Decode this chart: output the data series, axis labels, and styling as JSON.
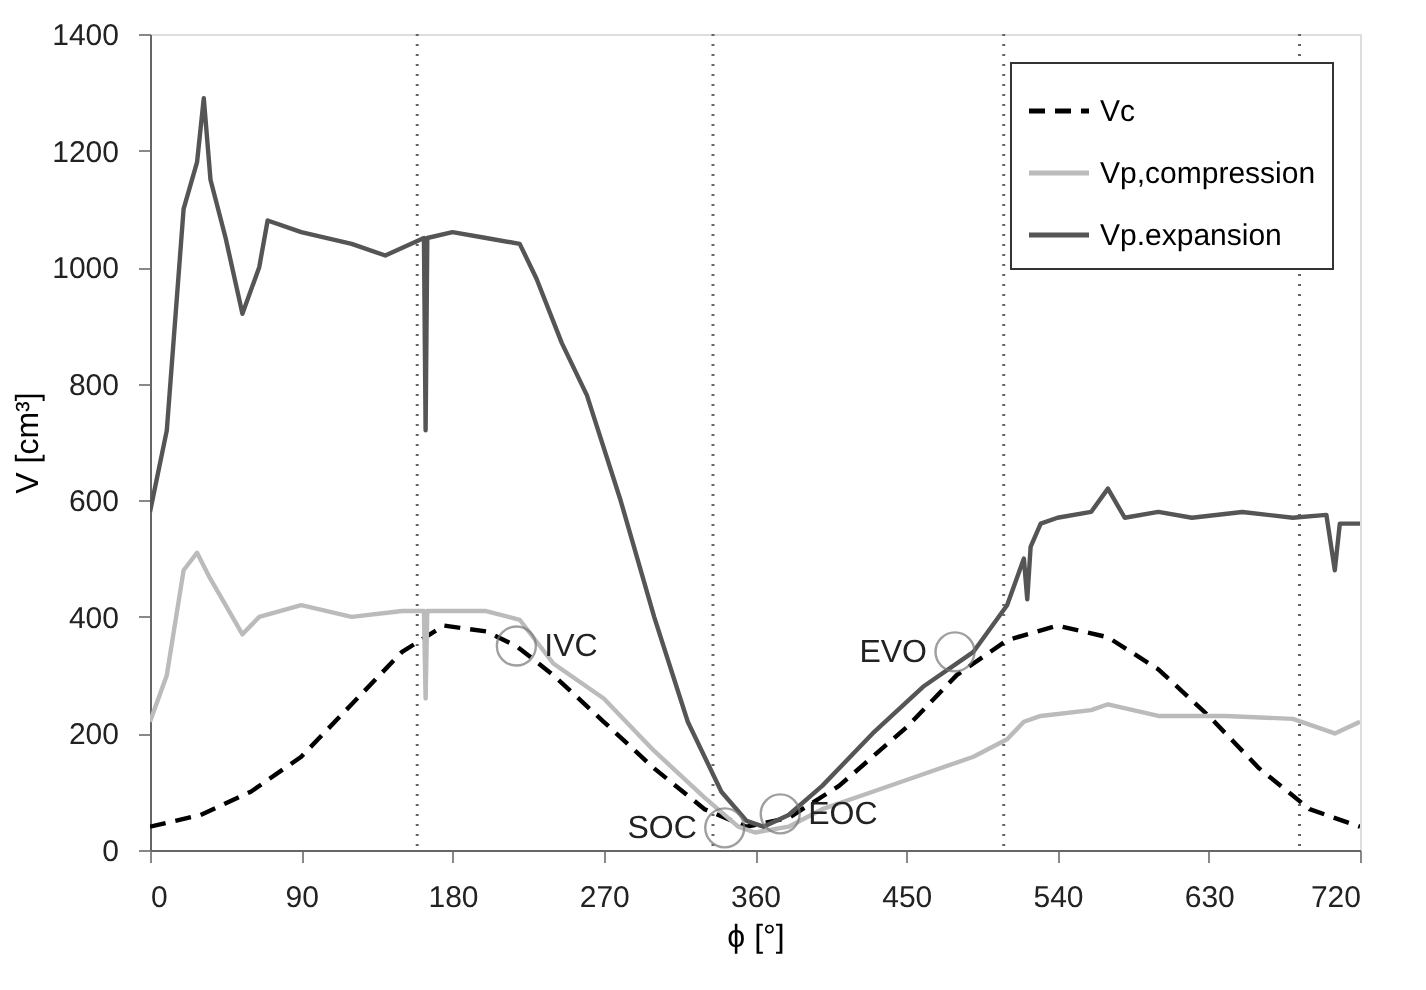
{
  "chart_data": {
    "type": "line",
    "xlabel": "ϕ [°]",
    "ylabel": "V [cm³]",
    "xlim": [
      0,
      720
    ],
    "xticks": [
      0,
      90,
      180,
      270,
      360,
      450,
      540,
      630,
      720
    ],
    "ylim": [
      0,
      1400
    ],
    "yticks": [
      0,
      200,
      400,
      600,
      800,
      1000,
      1200,
      1400
    ],
    "grid": false,
    "legend": "top right",
    "series": [
      {
        "name": "Vc",
        "color": "#000000",
        "line_style": "dashed",
        "x": [
          0,
          30,
          60,
          90,
          120,
          150,
          175,
          200,
          218,
          240,
          270,
          300,
          330,
          355,
          380,
          410,
          450,
          480,
          510,
          540,
          570,
          600,
          630,
          660,
          690,
          720
        ],
        "values": [
          40,
          60,
          100,
          160,
          250,
          340,
          385,
          375,
          350,
          300,
          220,
          140,
          70,
          40,
          55,
          110,
          210,
          300,
          360,
          385,
          365,
          310,
          230,
          140,
          70,
          40
        ]
      },
      {
        "name": "Vp,compression",
        "color": "#bbbbbb",
        "line_style": "solid",
        "x": [
          0,
          10,
          20,
          28,
          35,
          45,
          55,
          65,
          90,
          120,
          150,
          163,
          164,
          165,
          200,
          220,
          240,
          270,
          300,
          330,
          350,
          360,
          380,
          400,
          430,
          460,
          490,
          510,
          520,
          530,
          560,
          570,
          600,
          640,
          680,
          705,
          720
        ],
        "values": [
          220,
          300,
          480,
          510,
          470,
          420,
          370,
          400,
          420,
          400,
          410,
          410,
          260,
          410,
          410,
          395,
          320,
          260,
          170,
          90,
          40,
          30,
          40,
          70,
          100,
          130,
          160,
          190,
          220,
          230,
          240,
          250,
          230,
          230,
          225,
          200,
          220
        ]
      },
      {
        "name": "Vp.expansion",
        "color": "#555555",
        "line_style": "solid",
        "x": [
          0,
          10,
          20,
          28,
          32,
          36,
          45,
          55,
          65,
          70,
          90,
          120,
          140,
          163,
          164,
          165,
          180,
          200,
          220,
          230,
          245,
          260,
          280,
          300,
          320,
          340,
          355,
          365,
          380,
          400,
          430,
          460,
          490,
          510,
          520,
          522,
          524,
          530,
          540,
          560,
          570,
          580,
          600,
          620,
          650,
          680,
          700,
          705,
          708,
          720
        ],
        "values": [
          580,
          720,
          1100,
          1180,
          1290,
          1150,
          1050,
          920,
          1000,
          1080,
          1060,
          1040,
          1020,
          1050,
          720,
          1050,
          1060,
          1050,
          1040,
          980,
          870,
          780,
          600,
          400,
          220,
          100,
          50,
          40,
          60,
          110,
          200,
          280,
          340,
          420,
          500,
          430,
          520,
          560,
          570,
          580,
          620,
          570,
          580,
          570,
          580,
          570,
          575,
          480,
          560,
          560
        ]
      }
    ],
    "ref_lines": [
      {
        "axis": "x",
        "value": 159,
        "color": "#666666",
        "line_style": "dotted"
      },
      {
        "axis": "x",
        "value": 335,
        "color": "#666666",
        "line_style": "dotted"
      },
      {
        "axis": "x",
        "value": 508,
        "color": "#666666",
        "line_style": "dotted"
      },
      {
        "axis": "x",
        "value": 684,
        "color": "#666666",
        "line_style": "dotted"
      }
    ],
    "annotations": [
      {
        "text": "IVC",
        "x": 218,
        "y": 350
      },
      {
        "text": "SOC",
        "x": 342,
        "y": 38
      },
      {
        "text": "EOC",
        "x": 375,
        "y": 62
      },
      {
        "text": "EVO",
        "x": 479,
        "y": 340
      }
    ]
  }
}
